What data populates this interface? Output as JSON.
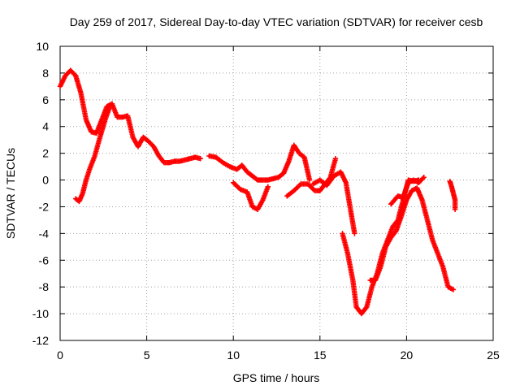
{
  "chart_data": {
    "type": "scatter",
    "title": "Day 259 of 2017, Sidereal Day-to-day VTEC variation (SDTVAR) for receiver cesb",
    "xlabel": "GPS time / hours",
    "ylabel": "SDTVAR / TECUs",
    "xlim": [
      0,
      25
    ],
    "ylim": [
      -12,
      10
    ],
    "xticks": [
      "0",
      "5",
      "10",
      "15",
      "20",
      "25"
    ],
    "yticks": [
      "-12",
      "-10",
      "-8",
      "-6",
      "-4",
      "-2",
      "0",
      "2",
      "4",
      "6",
      "8",
      "10"
    ],
    "grid": true,
    "marker": "+",
    "color": "#ff0000",
    "segments": [
      {
        "name": "main-trace",
        "x": [
          0.0,
          0.3,
          0.6,
          0.9,
          1.2,
          1.5,
          1.8,
          2.1,
          2.4,
          2.7,
          3.0,
          3.3,
          3.6,
          3.9,
          4.2,
          4.5,
          4.8,
          5.1,
          5.4,
          5.7,
          6.0,
          6.3,
          6.6,
          6.9,
          7.2,
          7.5,
          7.8,
          8.1
        ],
        "y": [
          7.0,
          7.8,
          8.2,
          7.8,
          6.5,
          4.5,
          3.6,
          3.5,
          4.5,
          5.5,
          5.7,
          4.7,
          4.7,
          4.8,
          3.2,
          2.5,
          3.2,
          2.9,
          2.5,
          1.8,
          1.3,
          1.3,
          1.4,
          1.4,
          1.5,
          1.6,
          1.7,
          1.6
        ]
      },
      {
        "name": "rising-trace",
        "x": [
          0.9,
          1.1,
          1.3,
          1.5,
          1.7,
          2.0,
          2.3,
          2.6,
          2.9
        ],
        "y": [
          -1.4,
          -1.6,
          -1.0,
          0.0,
          0.8,
          1.8,
          3.2,
          4.5,
          5.6
        ]
      },
      {
        "name": "mid-trace-a",
        "x": [
          8.6,
          9.0,
          9.4,
          9.8,
          10.2,
          10.5,
          10.8,
          11.1,
          11.4,
          11.7,
          12.0,
          12.3,
          12.6,
          12.9,
          13.2,
          13.5,
          13.8,
          14.1,
          14.4
        ],
        "y": [
          1.8,
          1.7,
          1.3,
          1.0,
          0.8,
          1.1,
          0.6,
          0.3,
          0.0,
          0.0,
          0.0,
          0.1,
          0.2,
          0.5,
          1.4,
          2.6,
          2.0,
          1.7,
          0.0
        ]
      },
      {
        "name": "mid-trace-b",
        "x": [
          10.0,
          10.4,
          10.8,
          11.1,
          11.4,
          11.7,
          12.0
        ],
        "y": [
          -0.2,
          -0.7,
          -0.9,
          -2.0,
          -2.2,
          -1.5,
          -0.5
        ]
      },
      {
        "name": "mid-trace-c",
        "x": [
          13.1,
          13.5,
          13.9,
          14.3,
          14.7,
          15.0,
          15.3,
          15.6,
          15.9
        ],
        "y": [
          -1.2,
          -0.8,
          -0.3,
          -0.3,
          -0.8,
          -0.8,
          -0.3,
          0.2,
          1.6
        ]
      },
      {
        "name": "mid-trace-d",
        "x": [
          14.6,
          15.0,
          15.4,
          15.8,
          16.2,
          16.5,
          16.8,
          17.0
        ],
        "y": [
          -0.3,
          0.0,
          -0.4,
          0.3,
          0.6,
          -0.2,
          -2.5,
          -4.0
        ]
      },
      {
        "name": "deep-trace",
        "x": [
          16.3,
          16.6,
          16.9,
          17.1,
          17.4,
          17.7,
          18.0,
          18.3,
          18.6,
          18.9,
          19.2,
          19.5,
          19.8,
          20.1,
          20.4,
          20.7
        ],
        "y": [
          -4.0,
          -5.5,
          -7.5,
          -9.5,
          -10.0,
          -9.5,
          -8.0,
          -7.0,
          -5.5,
          -4.5,
          -3.5,
          -3.0,
          -1.5,
          0.0,
          -0.1,
          0.0
        ]
      },
      {
        "name": "recovery-trace",
        "x": [
          17.9,
          18.2,
          18.5,
          18.8,
          19.1,
          19.4,
          19.7,
          20.0,
          20.3,
          20.6,
          20.9,
          21.2,
          21.5,
          21.8,
          22.1,
          22.4,
          22.7
        ],
        "y": [
          -7.5,
          -7.5,
          -6.5,
          -5.0,
          -4.3,
          -3.8,
          -2.7,
          -1.5,
          -0.8,
          -0.6,
          -1.5,
          -3.0,
          -4.5,
          -5.5,
          -6.5,
          -8.0,
          -8.2
        ]
      },
      {
        "name": "small-trace",
        "x": [
          19.1,
          19.5,
          19.8,
          20.1,
          20.4,
          20.7,
          21.0
        ],
        "y": [
          -1.8,
          -1.2,
          -1.3,
          -0.2,
          0.0,
          -0.2,
          0.2
        ]
      },
      {
        "name": "end-trace",
        "x": [
          22.5,
          22.6,
          22.7,
          22.8,
          22.8
        ],
        "y": [
          -0.1,
          -0.5,
          -1.0,
          -1.5,
          -2.2
        ]
      }
    ]
  }
}
